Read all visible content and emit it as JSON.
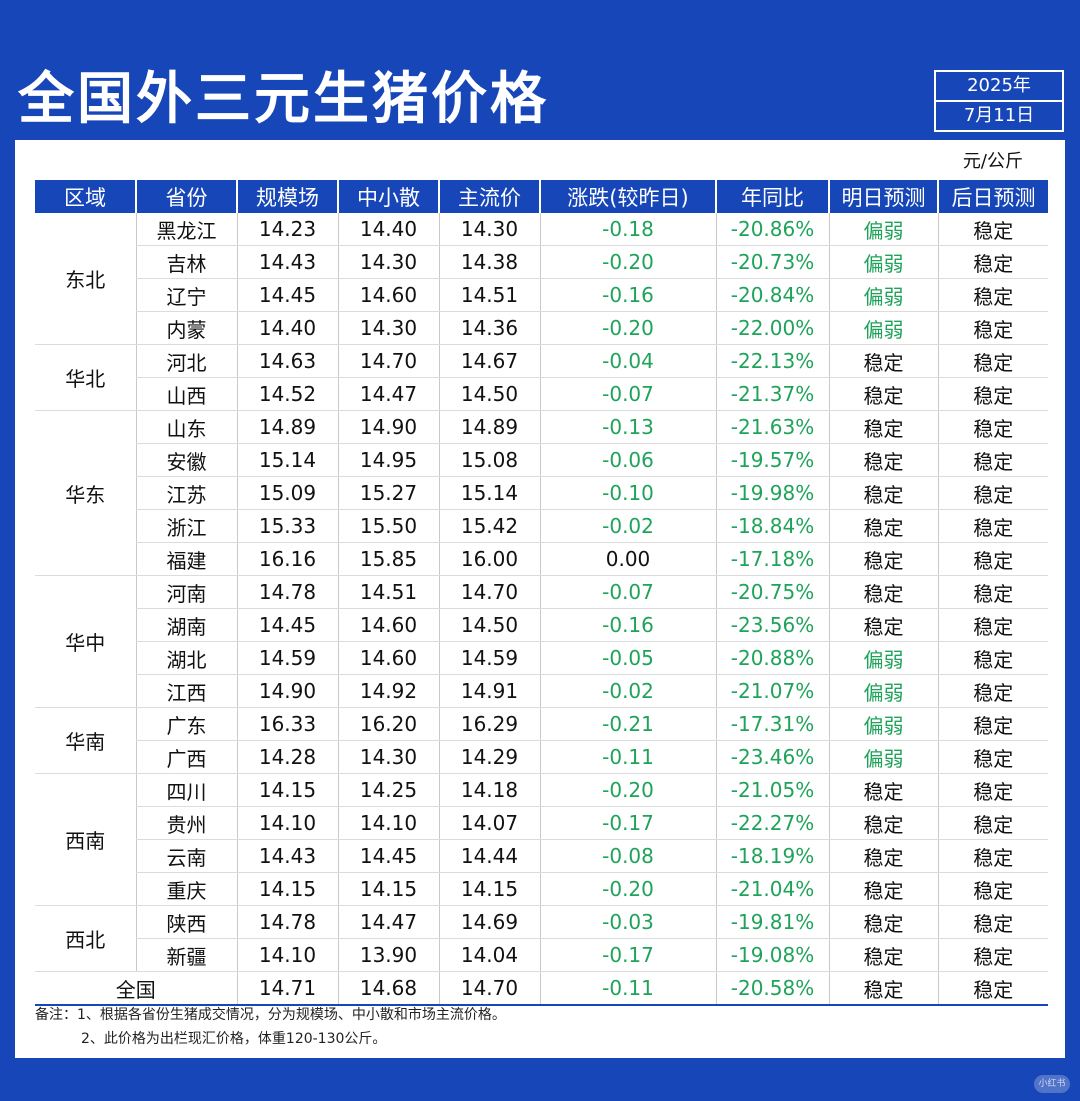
{
  "title": "全国外三元生猪价格",
  "date": {
    "year": "2025年",
    "day": "7月11日"
  },
  "unit": "元/公斤",
  "columns": [
    "区域",
    "省份",
    "规模场",
    "中小散",
    "主流价",
    "涨跌(较昨日)",
    "年同比",
    "明日预测",
    "后日预测"
  ],
  "groups": [
    {
      "region": "东北",
      "rows": [
        [
          "黑龙江",
          "14.23",
          "14.40",
          "14.30",
          "-0.18",
          "-20.86%",
          "偏弱",
          "稳定"
        ],
        [
          "吉林",
          "14.43",
          "14.30",
          "14.38",
          "-0.20",
          "-20.73%",
          "偏弱",
          "稳定"
        ],
        [
          "辽宁",
          "14.45",
          "14.60",
          "14.51",
          "-0.16",
          "-20.84%",
          "偏弱",
          "稳定"
        ],
        [
          "内蒙",
          "14.40",
          "14.30",
          "14.36",
          "-0.20",
          "-22.00%",
          "偏弱",
          "稳定"
        ]
      ]
    },
    {
      "region": "华北",
      "rows": [
        [
          "河北",
          "14.63",
          "14.70",
          "14.67",
          "-0.04",
          "-22.13%",
          "稳定",
          "稳定"
        ],
        [
          "山西",
          "14.52",
          "14.47",
          "14.50",
          "-0.07",
          "-21.37%",
          "稳定",
          "稳定"
        ]
      ]
    },
    {
      "region": "华东",
      "rows": [
        [
          "山东",
          "14.89",
          "14.90",
          "14.89",
          "-0.13",
          "-21.63%",
          "稳定",
          "稳定"
        ],
        [
          "安徽",
          "15.14",
          "14.95",
          "15.08",
          "-0.06",
          "-19.57%",
          "稳定",
          "稳定"
        ],
        [
          "江苏",
          "15.09",
          "15.27",
          "15.14",
          "-0.10",
          "-19.98%",
          "稳定",
          "稳定"
        ],
        [
          "浙江",
          "15.33",
          "15.50",
          "15.42",
          "-0.02",
          "-18.84%",
          "稳定",
          "稳定"
        ],
        [
          "福建",
          "16.16",
          "15.85",
          "16.00",
          "0.00",
          "-17.18%",
          "稳定",
          "稳定"
        ]
      ]
    },
    {
      "region": "华中",
      "rows": [
        [
          "河南",
          "14.78",
          "14.51",
          "14.70",
          "-0.07",
          "-20.75%",
          "稳定",
          "稳定"
        ],
        [
          "湖南",
          "14.45",
          "14.60",
          "14.50",
          "-0.16",
          "-23.56%",
          "稳定",
          "稳定"
        ],
        [
          "湖北",
          "14.59",
          "14.60",
          "14.59",
          "-0.05",
          "-20.88%",
          "偏弱",
          "稳定"
        ],
        [
          "江西",
          "14.90",
          "14.92",
          "14.91",
          "-0.02",
          "-21.07%",
          "偏弱",
          "稳定"
        ]
      ]
    },
    {
      "region": "华南",
      "rows": [
        [
          "广东",
          "16.33",
          "16.20",
          "16.29",
          "-0.21",
          "-17.31%",
          "偏弱",
          "稳定"
        ],
        [
          "广西",
          "14.28",
          "14.30",
          "14.29",
          "-0.11",
          "-23.46%",
          "偏弱",
          "稳定"
        ]
      ]
    },
    {
      "region": "西南",
      "rows": [
        [
          "四川",
          "14.15",
          "14.25",
          "14.18",
          "-0.20",
          "-21.05%",
          "稳定",
          "稳定"
        ],
        [
          "贵州",
          "14.10",
          "14.10",
          "14.07",
          "-0.17",
          "-22.27%",
          "稳定",
          "稳定"
        ],
        [
          "云南",
          "14.43",
          "14.45",
          "14.44",
          "-0.08",
          "-18.19%",
          "稳定",
          "稳定"
        ],
        [
          "重庆",
          "14.15",
          "14.15",
          "14.15",
          "-0.20",
          "-21.04%",
          "稳定",
          "稳定"
        ]
      ]
    },
    {
      "region": "西北",
      "rows": [
        [
          "陕西",
          "14.78",
          "14.47",
          "14.69",
          "-0.03",
          "-19.81%",
          "稳定",
          "稳定"
        ],
        [
          "新疆",
          "14.10",
          "13.90",
          "14.04",
          "-0.17",
          "-19.08%",
          "稳定",
          "稳定"
        ]
      ]
    }
  ],
  "total": [
    "全国",
    "14.71",
    "14.68",
    "14.70",
    "-0.11",
    "-20.58%",
    "稳定",
    "稳定"
  ],
  "notes": [
    "备注：1、根据各省份生猪成交情况，分为规模场、中小散和市场主流价格。",
    "2、此价格为出栏现汇价格，体重120-130公斤。"
  ],
  "watermark": "小红书",
  "colors": {
    "brand_blue": "#1746b8",
    "trend_green": "#1fa35a"
  }
}
